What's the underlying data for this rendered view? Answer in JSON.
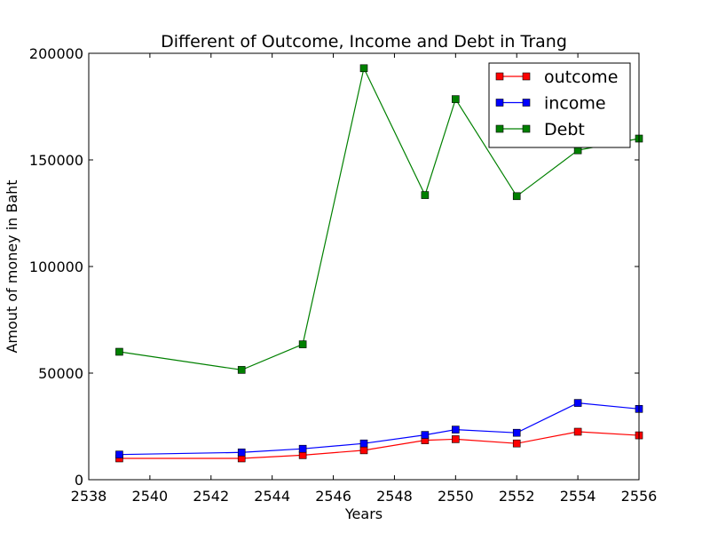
{
  "chart_data": {
    "type": "line",
    "title": "Different of Outcome, Income and Debt in Trang",
    "xlabel": "Years",
    "ylabel": "Amout of money in Baht",
    "xlim": [
      2538,
      2556
    ],
    "ylim": [
      0,
      200000
    ],
    "xticks": [
      2538,
      2540,
      2542,
      2544,
      2546,
      2548,
      2550,
      2552,
      2554,
      2556
    ],
    "yticks": [
      0,
      50000,
      100000,
      150000,
      200000
    ],
    "legend_position": "top-right",
    "grid": false,
    "series": [
      {
        "name": "outcome",
        "color": "#ff0000",
        "marker": "square",
        "x": [
          2539,
          2543,
          2545,
          2547,
          2549,
          2550,
          2552,
          2554,
          2556
        ],
        "y": [
          10000,
          10000,
          11500,
          13800,
          18500,
          19000,
          17000,
          22500,
          20800
        ]
      },
      {
        "name": "income",
        "color": "#0000ff",
        "marker": "square",
        "x": [
          2539,
          2543,
          2545,
          2547,
          2549,
          2550,
          2552,
          2554,
          2556
        ],
        "y": [
          11800,
          12800,
          14500,
          17000,
          21000,
          23500,
          22000,
          36000,
          33200
        ]
      },
      {
        "name": "Debt",
        "color": "#008000",
        "marker": "square",
        "x": [
          2539,
          2543,
          2545,
          2547,
          2549,
          2550,
          2552,
          2554,
          2556
        ],
        "y": [
          60000,
          51500,
          63500,
          193000,
          133500,
          178500,
          133000,
          154500,
          160000
        ]
      }
    ]
  }
}
